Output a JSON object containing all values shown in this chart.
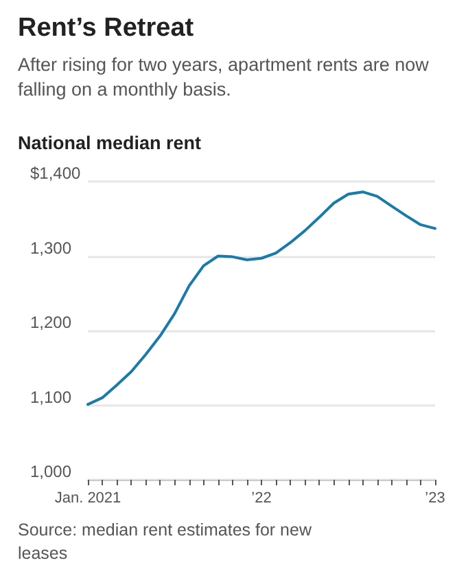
{
  "chart_data": {
    "type": "line",
    "title": "Rent’s Retreat",
    "subtitle": "After rising for two years, apartment rents are now falling on a monthly basis.",
    "ylabel": "National median rent",
    "annotations": [
      "Source: median rent estimates for new leases"
    ],
    "categories": [
      "Jan. 2021",
      null,
      null,
      null,
      null,
      null,
      null,
      null,
      null,
      null,
      null,
      null,
      "’22",
      null,
      null,
      null,
      null,
      null,
      null,
      null,
      null,
      null,
      null,
      null,
      "’23"
    ],
    "series": [
      {
        "color": "#1a7bab",
        "values": [
          1101,
          1110,
          1127,
          1145,
          1168,
          1193,
          1223,
          1260,
          1287,
          1300,
          1299,
          1295,
          1297,
          1304,
          1318,
          1334,
          1352,
          1371,
          1383,
          1386,
          1380,
          1367,
          1354,
          1342,
          1337
        ]
      }
    ],
    "ylim": [
      1000,
      1400
    ],
    "yticks": [
      {
        "value": 1000,
        "label": "1,000"
      },
      {
        "value": 1100,
        "label": "1,100"
      },
      {
        "value": 1200,
        "label": "1,200"
      },
      {
        "value": 1300,
        "label": "1,300"
      },
      {
        "value": 1400,
        "label": "$1,400"
      }
    ],
    "grid": "y",
    "marker": "none",
    "line_style": "solid"
  }
}
